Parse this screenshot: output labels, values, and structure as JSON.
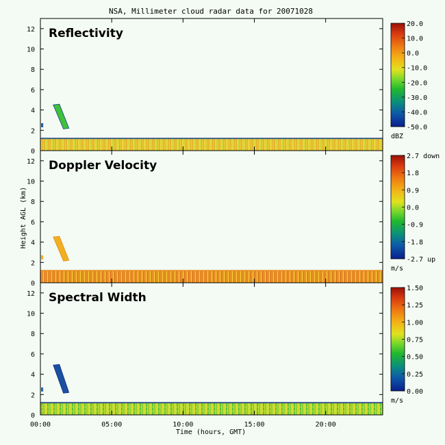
{
  "chart_data": {
    "type": "heatmap",
    "title": "NSA, Millimeter cloud radar data for 20071028",
    "xlabel": "Time (hours, GMT)",
    "ylabel": "Height AGL (km)",
    "xlim": [
      0,
      24
    ],
    "ylim": [
      0,
      13
    ],
    "x_tick_labels": [
      "00:00",
      "05:00",
      "10:00",
      "15:00",
      "20:00"
    ],
    "x_tick_values": [
      0,
      5,
      10,
      15,
      20
    ],
    "y_tick_values": [
      0,
      2,
      4,
      6,
      8,
      10,
      12
    ],
    "panels": [
      {
        "name": "Reflectivity",
        "colorbar": {
          "labels": [
            "20.0",
            "10.0",
            "0.0",
            "-10.0",
            "-20.0",
            "-30.0",
            "-40.0",
            "-50.0"
          ],
          "values": [
            20,
            10,
            0,
            -10,
            -20,
            -30,
            -40,
            -50
          ],
          "unit": "dBZ"
        },
        "features": [
          {
            "feature": "low-level layer",
            "time_start": 0,
            "time_end": 24,
            "height_bottom": 0,
            "height_top": 1.2,
            "value_range": [
              -30,
              10
            ]
          },
          {
            "feature": "sloping layer",
            "time_start": 0.9,
            "time_end": 2.0,
            "height_top": 4.5,
            "height_bottom": 2.2,
            "value_range": [
              -35,
              -25
            ]
          },
          {
            "feature": "small patch",
            "time_start": 0.0,
            "time_end": 0.15,
            "height_bottom": 2.3,
            "height_top": 2.7,
            "value_range": [
              -45,
              -40
            ]
          }
        ]
      },
      {
        "name": "Doppler Velocity",
        "colorbar": {
          "labels": [
            "2.7 down",
            "1.8",
            "0.9",
            "0.0",
            "-0.9",
            "-1.8",
            "-2.7 up"
          ],
          "values": [
            2.7,
            1.8,
            0.9,
            0.0,
            -0.9,
            -1.8,
            -2.7
          ],
          "unit": "m/s"
        },
        "features": [
          {
            "feature": "low-level layer",
            "time_start": 0,
            "time_end": 24,
            "height_bottom": 0,
            "height_top": 1.2,
            "value_range": [
              0.0,
              1.8
            ]
          },
          {
            "feature": "sloping layer",
            "time_start": 0.9,
            "time_end": 2.0,
            "height_top": 4.5,
            "height_bottom": 2.2,
            "value_range": [
              0.3,
              0.6
            ]
          },
          {
            "feature": "small patch",
            "time_start": 0.0,
            "time_end": 0.15,
            "height_bottom": 2.3,
            "height_top": 2.7,
            "value_range": [
              0.3,
              0.6
            ]
          }
        ]
      },
      {
        "name": "Spectral Width",
        "colorbar": {
          "labels": [
            "1.50",
            "1.25",
            "1.00",
            "0.75",
            "0.50",
            "0.25",
            "0.00"
          ],
          "values": [
            1.5,
            1.25,
            1.0,
            0.75,
            0.5,
            0.25,
            0.0
          ],
          "unit": "m/s"
        },
        "features": [
          {
            "feature": "low-level layer",
            "time_start": 0,
            "time_end": 24,
            "height_bottom": 0,
            "height_top": 1.2,
            "value_range": [
              0.4,
              0.8
            ]
          },
          {
            "feature": "sloping layer",
            "time_start": 0.9,
            "time_end": 2.0,
            "height_top": 4.9,
            "height_bottom": 2.2,
            "value_range": [
              0.05,
              0.2
            ]
          },
          {
            "feature": "small patch",
            "time_start": 0.0,
            "time_end": 0.15,
            "height_bottom": 2.3,
            "height_top": 2.7,
            "value_range": [
              0.1,
              0.2
            ]
          }
        ]
      }
    ]
  }
}
